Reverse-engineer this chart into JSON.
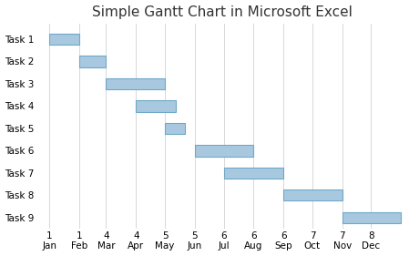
{
  "title": "Simple Gantt Chart in Microsoft Excel",
  "tasks": [
    "Task 1",
    "Task 2",
    "Task 3",
    "Task 4",
    "Task 5",
    "Task 6",
    "Task 7",
    "Task 8",
    "Task 9"
  ],
  "bars": [
    {
      "start": 0,
      "end": 31
    },
    {
      "start": 31,
      "end": 59
    },
    {
      "start": 59,
      "end": 120
    },
    {
      "start": 90,
      "end": 131
    },
    {
      "start": 120,
      "end": 141
    },
    {
      "start": 151,
      "end": 212
    },
    {
      "start": 181,
      "end": 243
    },
    {
      "start": 243,
      "end": 304
    },
    {
      "start": 304,
      "end": 365
    }
  ],
  "tick_positions": [
    0,
    31,
    59,
    90,
    120,
    151,
    181,
    212,
    243,
    273,
    304,
    334
  ],
  "tick_day_labels": [
    "1",
    "1",
    "4",
    "4",
    "5",
    "5",
    "6",
    "6",
    "6",
    "7",
    "7",
    "8"
  ],
  "tick_month_labels": [
    "Jan",
    "Feb",
    "Mar",
    "Apr",
    "May",
    "Jun",
    "Jul",
    "Aug",
    "Sep",
    "Oct",
    "Nov",
    "Dec"
  ],
  "bar_color": "#a8c8e0",
  "bar_edge_color": "#6fa8c8",
  "background_color": "#ffffff",
  "grid_color": "#d8d8d8",
  "title_fontsize": 11,
  "label_fontsize": 7.5,
  "xlim_min": -10,
  "xlim_max": 368,
  "ylim_min": -0.5,
  "ylim_max": 8.7,
  "bar_height": 0.5
}
